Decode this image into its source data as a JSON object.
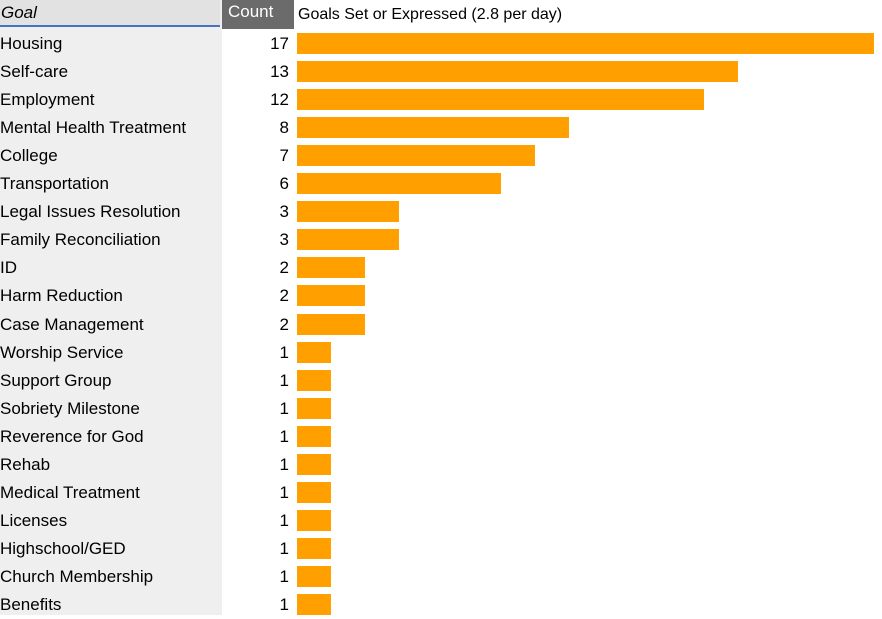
{
  "header": {
    "goal_label": "Goal",
    "count_label": "Count"
  },
  "colors": {
    "bar": "#ffa000",
    "header_accent": "#4a72c4",
    "count_header_bg": "#6b6b6b"
  },
  "chart_data": {
    "type": "bar",
    "orientation": "horizontal",
    "title": "Goals Set or Expressed (2.8 per day)",
    "xlabel": "",
    "ylabel": "",
    "xlim": [
      0,
      17
    ],
    "grid": false,
    "categories": [
      "Housing",
      "Self-care",
      "Employment",
      "Mental Health Treatment",
      "College",
      "Transportation",
      "Legal Issues Resolution",
      "Family Reconciliation",
      "ID",
      "Harm Reduction",
      "Case Management",
      "Worship Service",
      "Support Group",
      "Sobriety Milestone",
      "Reverence for God",
      "Rehab",
      "Medical Treatment",
      "Licenses",
      "Highschool/GED",
      "Church Membership",
      "Benefits"
    ],
    "values": [
      17,
      13,
      12,
      8,
      7,
      6,
      3,
      3,
      2,
      2,
      2,
      1,
      1,
      1,
      1,
      1,
      1,
      1,
      1,
      1,
      1
    ]
  }
}
